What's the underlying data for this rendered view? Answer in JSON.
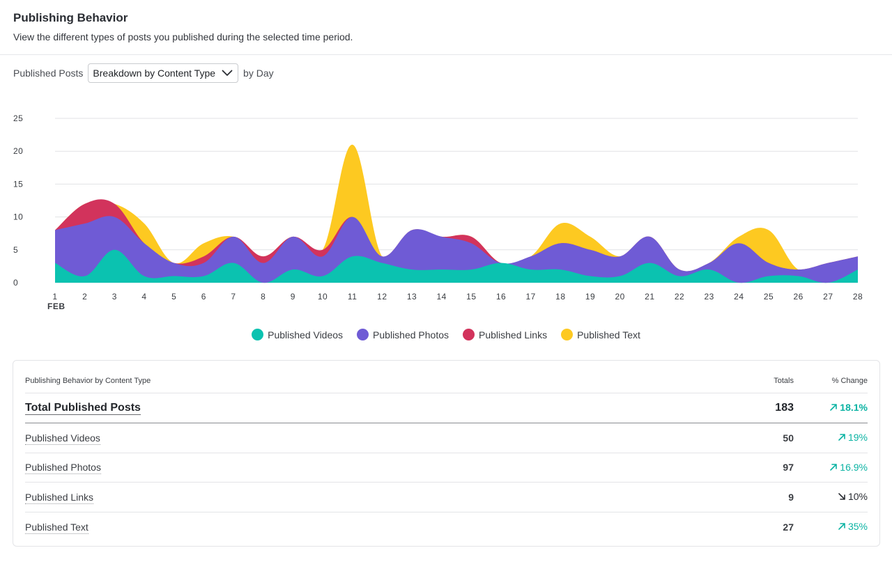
{
  "header": {
    "title": "Publishing Behavior",
    "subtitle": "View the different types of posts you published during the selected time period."
  },
  "filters": {
    "prefix": "Published Posts",
    "dropdown_value": "Breakdown by Content Type",
    "suffix": "by Day"
  },
  "chart_data": {
    "type": "area",
    "stacked": true,
    "x": [
      1,
      2,
      3,
      4,
      5,
      6,
      7,
      8,
      9,
      10,
      11,
      12,
      13,
      14,
      15,
      16,
      17,
      18,
      19,
      20,
      21,
      22,
      23,
      24,
      25,
      26,
      27,
      28
    ],
    "x_month_label": "FEB",
    "ylim": [
      0,
      25
    ],
    "yticks": [
      0,
      5,
      10,
      15,
      20,
      25
    ],
    "grid": true,
    "legend_position": "bottom",
    "series": [
      {
        "name": "Published Videos",
        "color": "#0bc2b0",
        "values": [
          3,
          1,
          5,
          1,
          1,
          1,
          3,
          0,
          2,
          1,
          4,
          3,
          2,
          2,
          2,
          3,
          2,
          2,
          1,
          1,
          3,
          1,
          2,
          0,
          1,
          1,
          0,
          2
        ]
      },
      {
        "name": "Published Photos",
        "color": "#6f5bd5",
        "values": [
          5,
          8,
          5,
          5,
          2,
          2,
          4,
          3,
          5,
          3,
          6,
          1,
          6,
          5,
          4,
          0,
          2,
          4,
          4,
          3,
          4,
          1,
          1,
          6,
          2,
          1,
          3,
          2
        ]
      },
      {
        "name": "Published Links",
        "color": "#d2335c",
        "values": [
          0,
          3,
          2,
          0,
          0,
          1,
          0,
          1,
          0,
          1,
          0,
          0,
          0,
          0,
          1,
          0,
          0,
          0,
          0,
          0,
          0,
          0,
          0,
          0,
          0,
          0,
          0,
          0
        ]
      },
      {
        "name": "Published Text",
        "color": "#fdc921",
        "values": [
          0,
          0,
          0,
          3,
          0,
          2,
          0,
          0,
          0,
          0,
          11,
          0,
          0,
          0,
          0,
          0,
          0,
          3,
          2,
          0,
          0,
          0,
          0,
          1,
          5,
          0,
          0,
          0
        ]
      }
    ]
  },
  "table": {
    "header_label": "Publishing Behavior by Content Type",
    "header_totals": "Totals",
    "header_change": "% Change",
    "rows": [
      {
        "label": "Total Published Posts",
        "total": "183",
        "change": "18.1%",
        "direction": "up"
      },
      {
        "label": "Published Videos",
        "total": "50",
        "change": "19%",
        "direction": "up"
      },
      {
        "label": "Published Photos",
        "total": "97",
        "change": "16.9%",
        "direction": "up"
      },
      {
        "label": "Published Links",
        "total": "9",
        "change": "10%",
        "direction": "down"
      },
      {
        "label": "Published Text",
        "total": "27",
        "change": "35%",
        "direction": "up"
      }
    ]
  },
  "colors": {
    "up": "#0bb3a3",
    "down": "#2a2d33",
    "grid": "#e1e2e5"
  }
}
